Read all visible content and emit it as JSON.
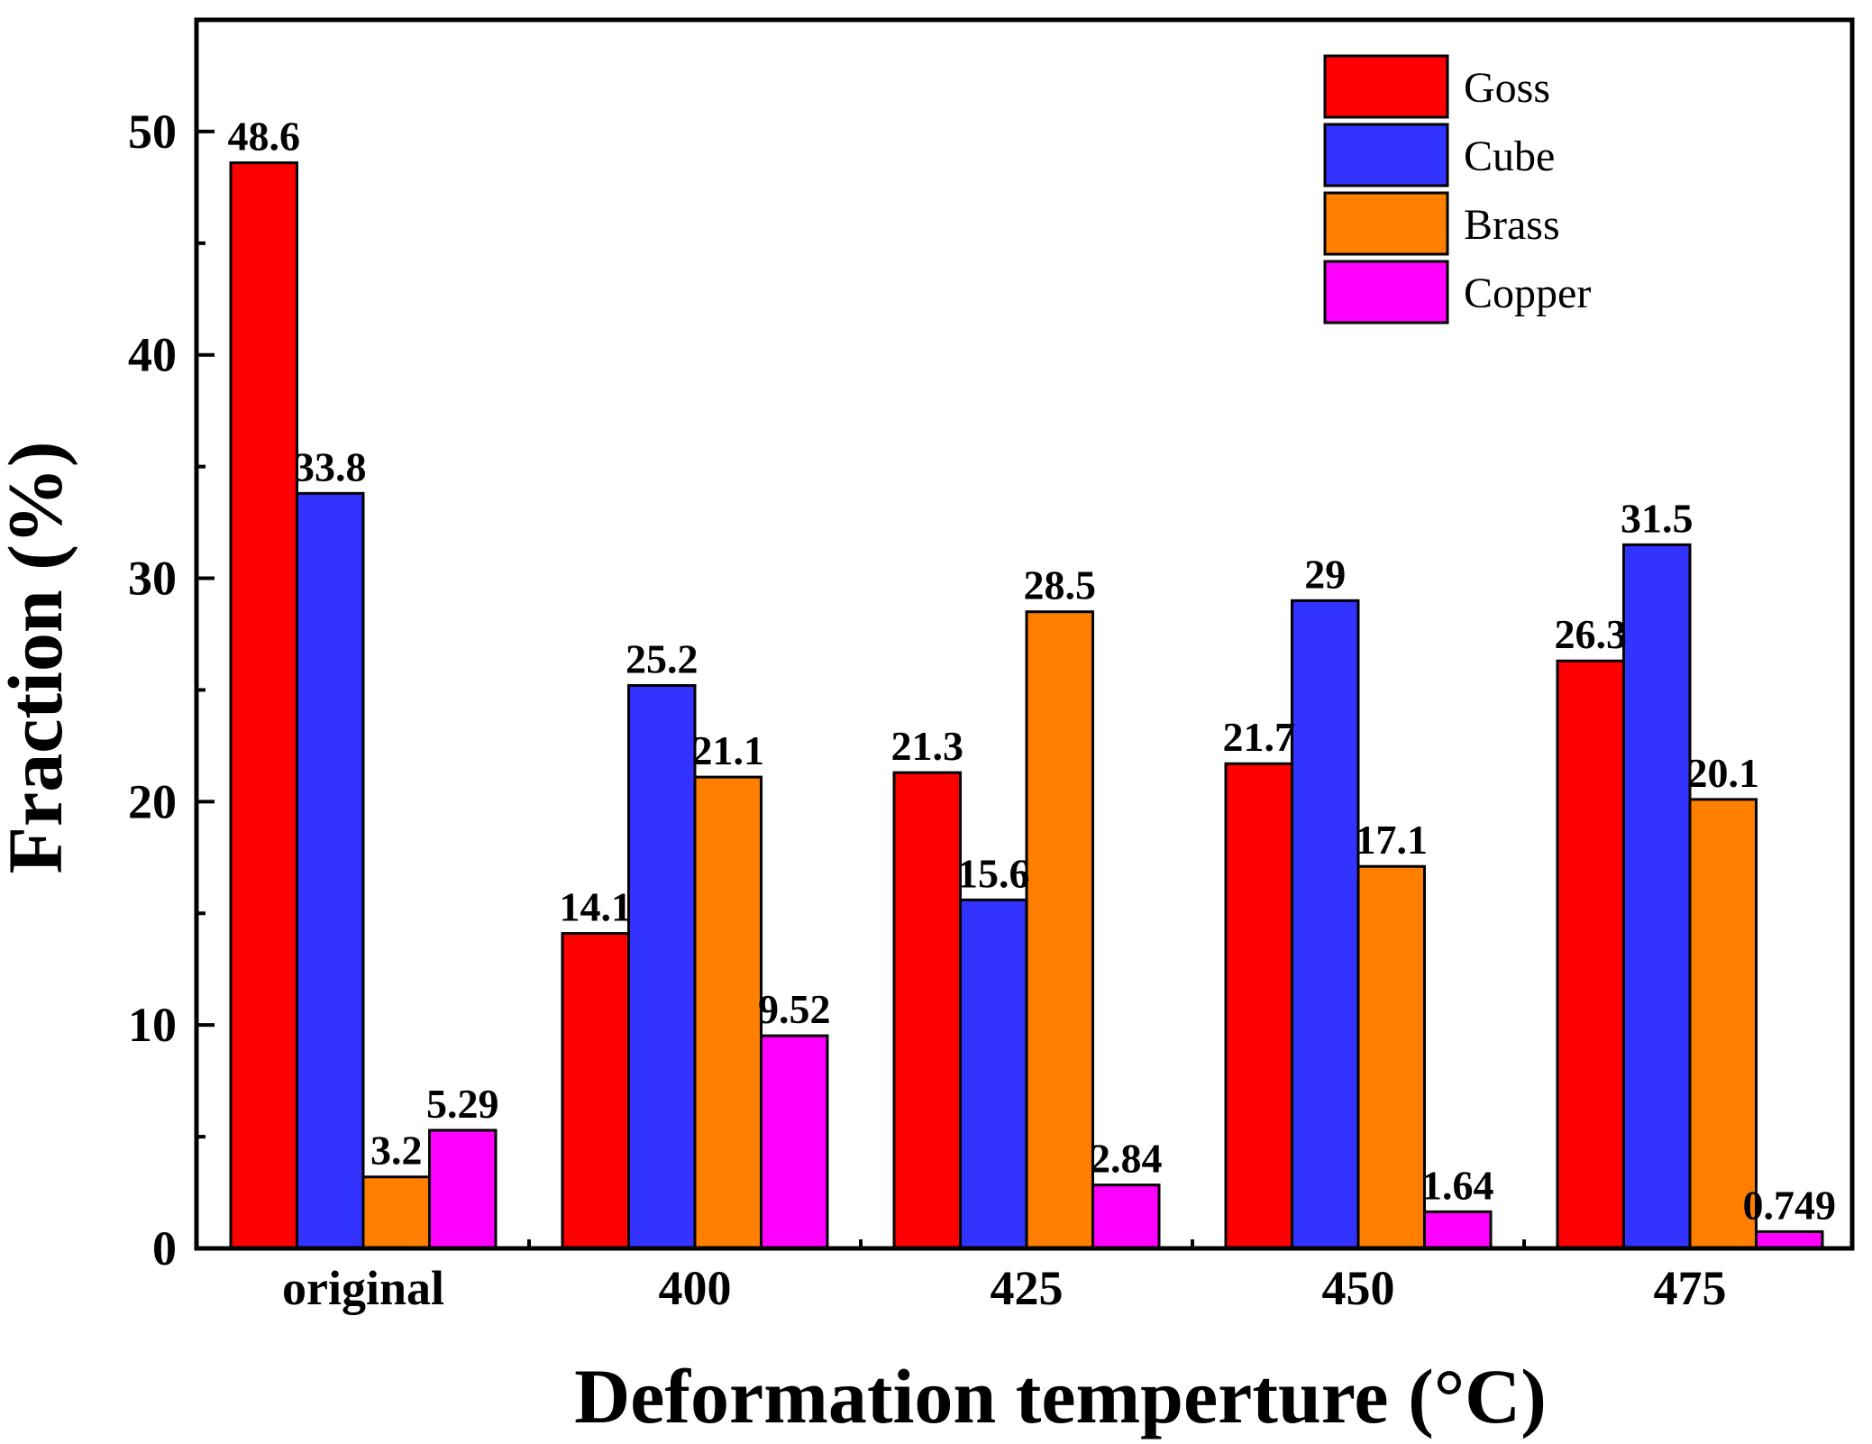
{
  "chart_data": {
    "type": "bar",
    "title": "",
    "xlabel": "Deformation temperture (°C)",
    "ylabel": "Fraction (%)",
    "categories": [
      "original",
      "400",
      "425",
      "450",
      "475"
    ],
    "ylim": [
      0,
      55
    ],
    "yticks": [
      0,
      10,
      20,
      30,
      40,
      50
    ],
    "grid": false,
    "legend_position": "top-right",
    "series": [
      {
        "name": "Goss",
        "color": "#ff0000",
        "values": [
          48.6,
          14.1,
          21.3,
          21.7,
          26.3
        ],
        "labels": [
          "48.6",
          "14.1",
          "21.3",
          "21.7",
          "26.3"
        ]
      },
      {
        "name": "Cube",
        "color": "#3333ff",
        "values": [
          33.8,
          25.2,
          15.6,
          29,
          31.5
        ],
        "labels": [
          "33.8",
          "25.2",
          "15.6",
          "29",
          "31.5"
        ]
      },
      {
        "name": "Brass",
        "color": "#ff8000",
        "values": [
          3.2,
          21.1,
          28.5,
          17.1,
          20.1
        ],
        "labels": [
          "3.2",
          "21.1",
          "28.5",
          "17.1",
          "20.1"
        ]
      },
      {
        "name": "Copper",
        "color": "#ff00ff",
        "values": [
          5.29,
          9.52,
          2.84,
          1.64,
          0.749
        ],
        "labels": [
          "5.29",
          "9.52",
          "2.84",
          "1.64",
          "0.749"
        ]
      }
    ]
  }
}
